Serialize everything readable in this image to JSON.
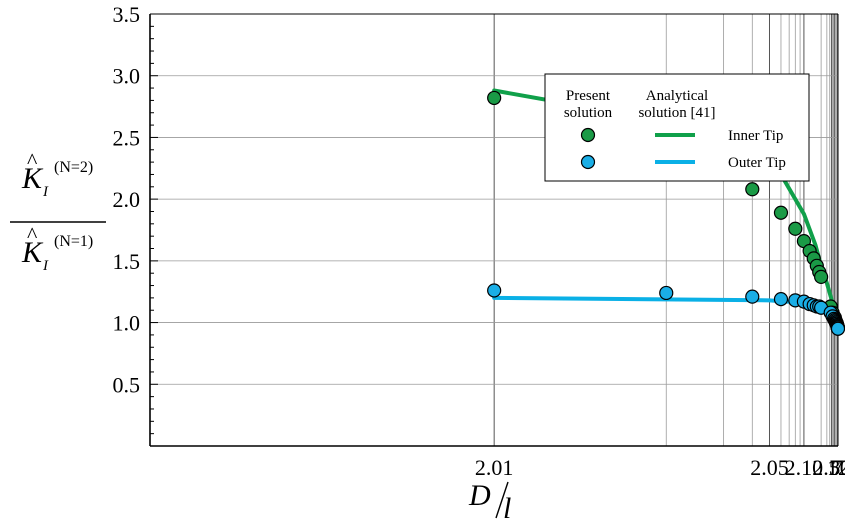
{
  "chart_data": {
    "type": "scatter",
    "x_scale": "reciprocal-distance",
    "xlabel": {
      "numerator": "D",
      "denominator": "l"
    },
    "ylabel": {
      "numerator": {
        "symbol": "K",
        "subscript": "I",
        "superscript": "(N=2)"
      },
      "denominator": {
        "symbol": "K",
        "subscript": "I",
        "superscript": "(N=1)"
      }
    },
    "xlim": [
      2.005,
      12.5
    ],
    "ylim": [
      0.0,
      3.5
    ],
    "x_ticks": [
      {
        "value": 2.01,
        "label": "2.01"
      },
      {
        "value": 2.05,
        "label": "2.05"
      },
      {
        "value": 2.1,
        "label": "2.10"
      },
      {
        "value": 2.5,
        "label": "2.50"
      },
      {
        "value": 3,
        "label": "3"
      },
      {
        "value": 7,
        "label": "7"
      },
      {
        "value": 12,
        "label": "12"
      }
    ],
    "y_ticks": [
      {
        "value": 0.5,
        "label": "0.5"
      },
      {
        "value": 1.0,
        "label": "1.0"
      },
      {
        "value": 1.5,
        "label": "1.5"
      },
      {
        "value": 2.0,
        "label": "2.0"
      },
      {
        "value": 2.5,
        "label": "2.5"
      },
      {
        "value": 3.0,
        "label": "3.0"
      },
      {
        "value": 3.5,
        "label": "3.5"
      }
    ],
    "grid": true,
    "legend": {
      "position": "upper-right",
      "column_headers": [
        "Present\nsolution",
        "Analytical\nsolution [41]"
      ],
      "entries": [
        "Inner Tip",
        "Outer Tip"
      ]
    },
    "series": [
      {
        "name": "Inner Tip",
        "color": "#10a04a",
        "marker_color": "#1a9a46",
        "points": [
          [
            2.01,
            2.82
          ],
          [
            2.02,
            2.43
          ],
          [
            2.04,
            2.08
          ],
          [
            2.06,
            1.89
          ],
          [
            2.08,
            1.76
          ],
          [
            2.1,
            1.66
          ],
          [
            2.12,
            1.58
          ],
          [
            2.14,
            1.52
          ],
          [
            2.16,
            1.46
          ],
          [
            2.18,
            1.41
          ],
          [
            2.2,
            1.37
          ],
          [
            2.45,
            1.13
          ],
          [
            2.6,
            1.08
          ],
          [
            2.8,
            1.05
          ],
          [
            3.0,
            1.04
          ],
          [
            3.2,
            1.02
          ],
          [
            3.4,
            1.01
          ],
          [
            3.6,
            1.0
          ],
          [
            3.8,
            1.0
          ],
          [
            4.0,
            0.99
          ],
          [
            4.5,
            0.99
          ],
          [
            5.0,
            0.98
          ],
          [
            6.0,
            0.97
          ],
          [
            6.5,
            0.97
          ],
          [
            7.0,
            0.96
          ],
          [
            7.5,
            0.96
          ],
          [
            8.0,
            0.96
          ],
          [
            10.0,
            0.96
          ],
          [
            12.0,
            0.95
          ]
        ],
        "analytical": [
          [
            2.01,
            2.88
          ],
          [
            2.03,
            2.55
          ],
          [
            2.06,
            2.2
          ],
          [
            2.1,
            1.88
          ],
          [
            2.15,
            1.63
          ],
          [
            2.2,
            1.46
          ],
          [
            2.3,
            1.32
          ],
          [
            2.5,
            1.19
          ],
          [
            2.7,
            1.13
          ],
          [
            3.0,
            1.09
          ],
          [
            3.5,
            1.05
          ],
          [
            4.0,
            1.03
          ],
          [
            5.0,
            1.02
          ],
          [
            7.0,
            1.01
          ],
          [
            9.0,
            1.0
          ],
          [
            12.0,
            1.0
          ]
        ]
      },
      {
        "name": "Outer Tip",
        "color": "#0ab0e6",
        "marker_color": "#1aaee6",
        "points": [
          [
            2.01,
            1.26
          ],
          [
            2.02,
            1.24
          ],
          [
            2.04,
            1.21
          ],
          [
            2.06,
            1.19
          ],
          [
            2.08,
            1.18
          ],
          [
            2.1,
            1.17
          ],
          [
            2.12,
            1.15
          ],
          [
            2.14,
            1.14
          ],
          [
            2.16,
            1.13
          ],
          [
            2.18,
            1.13
          ],
          [
            2.2,
            1.12
          ],
          [
            2.45,
            1.08
          ],
          [
            2.6,
            1.05
          ],
          [
            2.8,
            1.03
          ],
          [
            3.0,
            1.02
          ],
          [
            3.2,
            1.01
          ],
          [
            3.4,
            1.0
          ],
          [
            3.6,
            1.0
          ],
          [
            3.8,
            0.99
          ],
          [
            4.0,
            0.99
          ],
          [
            4.5,
            0.98
          ],
          [
            5.0,
            0.98
          ],
          [
            6.0,
            0.97
          ],
          [
            6.5,
            0.97
          ],
          [
            7.0,
            0.96
          ],
          [
            7.5,
            0.96
          ],
          [
            8.0,
            0.96
          ],
          [
            10.0,
            0.96
          ],
          [
            12.0,
            0.95
          ]
        ],
        "analytical": [
          [
            2.01,
            1.2
          ],
          [
            2.05,
            1.18
          ],
          [
            2.1,
            1.16
          ],
          [
            2.2,
            1.13
          ],
          [
            2.5,
            1.08
          ],
          [
            3.0,
            1.04
          ],
          [
            4.0,
            1.02
          ],
          [
            6.0,
            1.01
          ],
          [
            9.0,
            1.0
          ],
          [
            12.0,
            1.0
          ]
        ]
      }
    ]
  }
}
